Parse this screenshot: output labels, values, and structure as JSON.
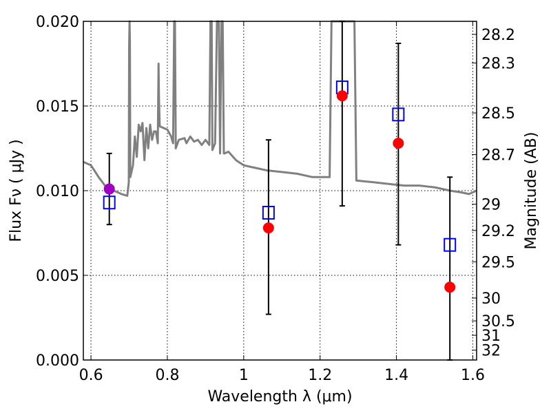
{
  "chart_data": {
    "type": "scatter",
    "xlabel": "Wavelength  λ (μm)",
    "ylabel": "Flux  Fν  ( μJy )",
    "y2label": "Magnitude (AB)",
    "xlim": [
      0.58,
      1.61
    ],
    "ylim": [
      0.0,
      0.02
    ],
    "grid": true,
    "x_ticks": [
      0.6,
      0.8,
      1.0,
      1.2,
      1.4,
      1.6
    ],
    "x_tick_labels": [
      "0.6",
      "0.8",
      "1",
      "1.2",
      "1.4",
      "1.6"
    ],
    "y_ticks": [
      0.0,
      0.005,
      0.01,
      0.015,
      0.02
    ],
    "y_tick_labels": [
      "0.000",
      "0.005",
      "0.010",
      "0.015",
      "0.020"
    ],
    "mag_ticks": [
      {
        "label": "28.2",
        "flux": 0.01923
      },
      {
        "label": "28.3",
        "flux": 0.01754
      },
      {
        "label": "28.5",
        "flux": 0.01459
      },
      {
        "label": "28.7",
        "flux": 0.01213
      },
      {
        "label": "29",
        "flux": 0.0092
      },
      {
        "label": "29.2",
        "flux": 0.00765
      },
      {
        "label": "29.5",
        "flux": 0.0058
      },
      {
        "label": "30",
        "flux": 0.00366
      },
      {
        "label": "30.5",
        "flux": 0.00231
      },
      {
        "label": "31",
        "flux": 0.00146
      },
      {
        "label": "32",
        "flux": 0.00058
      }
    ],
    "model_spectrum": {
      "color": "#808080",
      "points": [
        [
          0.58,
          0.0117
        ],
        [
          0.6,
          0.0115
        ],
        [
          0.62,
          0.0108
        ],
        [
          0.64,
          0.0102
        ],
        [
          0.66,
          0.01
        ],
        [
          0.68,
          0.0098
        ],
        [
          0.695,
          0.0097
        ],
        [
          0.699,
          0.0105
        ],
        [
          0.7,
          0.0185
        ],
        [
          0.701,
          0.02
        ],
        [
          0.702,
          0.0189
        ],
        [
          0.703,
          0.0108
        ],
        [
          0.71,
          0.0115
        ],
        [
          0.715,
          0.0132
        ],
        [
          0.72,
          0.012
        ],
        [
          0.725,
          0.0139
        ],
        [
          0.73,
          0.0135
        ],
        [
          0.735,
          0.014
        ],
        [
          0.74,
          0.0118
        ],
        [
          0.745,
          0.0137
        ],
        [
          0.75,
          0.0125
        ],
        [
          0.755,
          0.0139
        ],
        [
          0.76,
          0.013
        ],
        [
          0.765,
          0.0135
        ],
        [
          0.77,
          0.0135
        ],
        [
          0.775,
          0.0128
        ],
        [
          0.777,
          0.0175
        ],
        [
          0.778,
          0.0155
        ],
        [
          0.78,
          0.0138
        ],
        [
          0.8,
          0.0136
        ],
        [
          0.81,
          0.0132
        ],
        [
          0.815,
          0.0128
        ],
        [
          0.818,
          0.02
        ],
        [
          0.82,
          0.02
        ],
        [
          0.822,
          0.0125
        ],
        [
          0.83,
          0.013
        ],
        [
          0.845,
          0.0131
        ],
        [
          0.85,
          0.0128
        ],
        [
          0.86,
          0.0132
        ],
        [
          0.87,
          0.0129
        ],
        [
          0.88,
          0.013
        ],
        [
          0.89,
          0.0127
        ],
        [
          0.9,
          0.013
        ],
        [
          0.91,
          0.0127
        ],
        [
          0.913,
          0.02
        ],
        [
          0.916,
          0.02
        ],
        [
          0.918,
          0.0124
        ],
        [
          0.925,
          0.0128
        ],
        [
          0.93,
          0.02
        ],
        [
          0.935,
          0.02
        ],
        [
          0.938,
          0.0122
        ],
        [
          0.942,
          0.02
        ],
        [
          0.945,
          0.02
        ],
        [
          0.948,
          0.0122
        ],
        [
          0.95,
          0.0122
        ],
        [
          0.96,
          0.0123
        ],
        [
          0.98,
          0.0118
        ],
        [
          1.0,
          0.0115
        ],
        [
          1.02,
          0.0114
        ],
        [
          1.04,
          0.0113
        ],
        [
          1.06,
          0.0112
        ],
        [
          1.1,
          0.0111
        ],
        [
          1.14,
          0.011
        ],
        [
          1.18,
          0.0108
        ],
        [
          1.21,
          0.0108
        ],
        [
          1.225,
          0.0108
        ],
        [
          1.23,
          0.02
        ],
        [
          1.29,
          0.02
        ],
        [
          1.295,
          0.0106
        ],
        [
          1.34,
          0.0105
        ],
        [
          1.38,
          0.0104
        ],
        [
          1.42,
          0.0103
        ],
        [
          1.46,
          0.0103
        ],
        [
          1.5,
          0.0102
        ],
        [
          1.52,
          0.0101
        ],
        [
          1.54,
          0.01
        ],
        [
          1.57,
          0.0099
        ],
        [
          1.59,
          0.0098
        ],
        [
          1.61,
          0.01
        ]
      ]
    },
    "observed": {
      "color": "#ff0000",
      "points": [
        {
          "x": 1.065,
          "y": 0.0078
        },
        {
          "x": 1.258,
          "y": 0.0156
        },
        {
          "x": 1.405,
          "y": 0.0128
        },
        {
          "x": 1.54,
          "y": 0.0043
        }
      ]
    },
    "observed_highlight": {
      "color": "#a000c0",
      "points": [
        {
          "x": 0.648,
          "y": 0.0101
        }
      ]
    },
    "model_photometry": {
      "color": "#0000ff",
      "points": [
        {
          "x": 0.648,
          "y": 0.0093,
          "err_low": 0.008,
          "err_high": 0.0122
        },
        {
          "x": 1.065,
          "y": 0.0087,
          "err_low": 0.0027,
          "err_high": 0.013
        },
        {
          "x": 1.258,
          "y": 0.0161,
          "err_low": 0.0091,
          "err_high": 0.02
        },
        {
          "x": 1.405,
          "y": 0.0145,
          "err_low": 0.0068,
          "err_high": 0.0187
        },
        {
          "x": 1.54,
          "y": 0.0068,
          "err_low": 0.0,
          "err_high": 0.0108
        }
      ]
    }
  }
}
